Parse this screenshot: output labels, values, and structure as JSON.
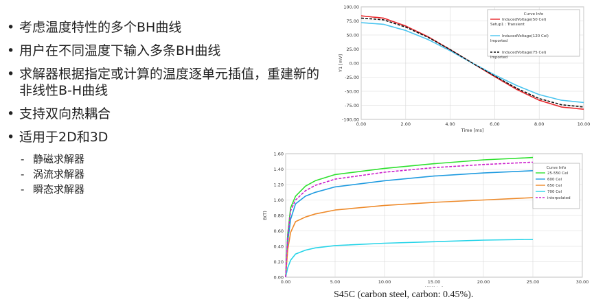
{
  "slide": {
    "bullets": [
      "考虑温度特性的多个BH曲线",
      "用户在不同温度下输入多条BH曲线",
      "求解器根据指定或计算的温度逐单元插值，重建新的非线性B-H曲线",
      "支持双向热耦合",
      "适用于2D和3D"
    ],
    "bullet_marker": "•",
    "sub_marker": "-",
    "sub_bullets": [
      "静磁求解器",
      "涡流求解器",
      "瞬态求解器"
    ],
    "caption": "S45C (carbon steel, carbon: 0.45%)."
  },
  "chart_data": [
    {
      "type": "line",
      "title": "",
      "xlabel": "Time [ms]",
      "ylabel": "Y1 [mV]",
      "xlim": [
        0,
        10
      ],
      "ylim": [
        -100,
        100
      ],
      "xticks": [
        "0.00",
        "2.00",
        "4.00",
        "6.00",
        "8.00",
        "10.00"
      ],
      "yticks": [
        "100.00",
        "75.00",
        "50.00",
        "25.00",
        "0.00",
        "-25.00",
        "-50.00",
        "-75.00",
        "-100.00"
      ],
      "grid": true,
      "legend_title": "Curve Info",
      "legend_placement": "top-right",
      "series": [
        {
          "name": "InducedVoltage(50 Cel)",
          "sub": "Setup1 : Transient",
          "color": "#e8262a",
          "dash": "solid",
          "x": [
            0,
            1,
            2,
            3,
            4,
            5,
            6,
            7,
            8,
            9,
            10
          ],
          "y": [
            84,
            80,
            66,
            47,
            24,
            0,
            -24,
            -47,
            -66,
            -78,
            -82
          ]
        },
        {
          "name": "InducedVoltage(120 Cel)",
          "sub": "Imported",
          "color": "#49c4ef",
          "dash": "solid",
          "x": [
            0,
            1,
            2,
            3,
            4,
            5,
            6,
            7,
            8,
            9,
            10
          ],
          "y": [
            72,
            69,
            58,
            42,
            22,
            0,
            -21,
            -40,
            -56,
            -66,
            -70
          ]
        },
        {
          "name": "InducedVoltage(75 Cel)",
          "sub": "Imported",
          "color": "#111111",
          "dash": "dashed",
          "x": [
            0,
            1,
            2,
            3,
            4,
            5,
            6,
            7,
            8,
            9,
            10
          ],
          "y": [
            80,
            77,
            64,
            46,
            24,
            0,
            -23,
            -45,
            -63,
            -74,
            -78
          ]
        }
      ]
    },
    {
      "type": "line",
      "title": "",
      "xlabel": "H(KA/m)",
      "ylabel": "B(T)",
      "xlim": [
        0,
        30
      ],
      "ylim": [
        0,
        1.6
      ],
      "xticks": [
        "0.00",
        "5.00",
        "10.00",
        "15.00",
        "20.00",
        "25.00",
        "30.00"
      ],
      "yticks": [
        "1.60",
        "1.40",
        "1.20",
        "1.00",
        "0.80",
        "0.60",
        "0.40",
        "0.20",
        "0.00"
      ],
      "grid": true,
      "legend_title": "Curve Info",
      "legend_placement": "right",
      "series": [
        {
          "name": "25-550 Cel",
          "color": "#2ee02e",
          "dash": "solid",
          "x": [
            0,
            0.2,
            0.5,
            1,
            2,
            3,
            5,
            10,
            15,
            20,
            25
          ],
          "y": [
            0,
            0.55,
            0.9,
            1.05,
            1.18,
            1.25,
            1.33,
            1.41,
            1.47,
            1.52,
            1.55
          ]
        },
        {
          "name": "600 Cel",
          "color": "#1f9be0",
          "dash": "solid",
          "x": [
            0,
            0.2,
            0.5,
            1,
            2,
            3,
            5,
            10,
            15,
            20,
            25
          ],
          "y": [
            0,
            0.45,
            0.75,
            0.95,
            1.05,
            1.1,
            1.17,
            1.25,
            1.31,
            1.35,
            1.38
          ]
        },
        {
          "name": "650 Cel",
          "color": "#ee8a2a",
          "dash": "solid",
          "x": [
            0,
            0.2,
            0.5,
            1,
            2,
            3,
            5,
            10,
            15,
            20,
            25
          ],
          "y": [
            0,
            0.35,
            0.58,
            0.72,
            0.78,
            0.82,
            0.87,
            0.93,
            0.97,
            1.0,
            1.03
          ]
        },
        {
          "name": "700 Cel",
          "color": "#27d4e8",
          "dash": "solid",
          "x": [
            0,
            0.2,
            0.5,
            1,
            2,
            3,
            5,
            10,
            15,
            20,
            25
          ],
          "y": [
            0,
            0.12,
            0.22,
            0.3,
            0.35,
            0.38,
            0.41,
            0.44,
            0.46,
            0.48,
            0.49
          ]
        },
        {
          "name": "interpolated",
          "color": "#cc1fcc",
          "dash": "dashed",
          "x": [
            0,
            0.2,
            0.5,
            1,
            2,
            3,
            5,
            10,
            15,
            20,
            25
          ],
          "y": [
            0,
            0.52,
            0.86,
            1.0,
            1.12,
            1.19,
            1.27,
            1.36,
            1.42,
            1.46,
            1.49
          ]
        }
      ]
    }
  ]
}
